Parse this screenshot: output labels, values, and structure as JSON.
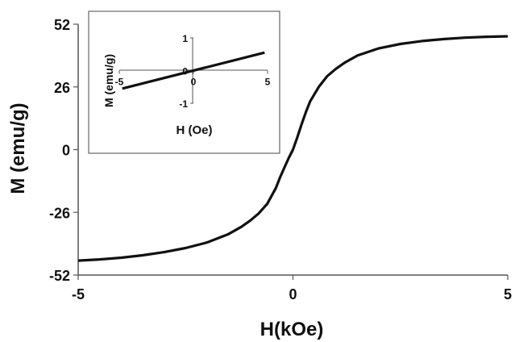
{
  "chart_data": [
    {
      "type": "line",
      "xlabel": "H(kOe)",
      "ylabel": "M (emu/g)",
      "xlim": [
        -5,
        5
      ],
      "ylim": [
        -52,
        52
      ],
      "xticks": [
        "-5",
        "0",
        "5"
      ],
      "yticks": [
        "52",
        "26",
        "0",
        "-26",
        "-52"
      ],
      "grid": false,
      "legend": "none",
      "series": [
        {
          "color": "#111111",
          "x": [
            -5.0,
            -4.5,
            -4.0,
            -3.5,
            -3.0,
            -2.5,
            -2.0,
            -1.5,
            -1.2,
            -1.0,
            -0.8,
            -0.6,
            -0.4,
            -0.3,
            -0.2,
            -0.1,
            0.0,
            0.1,
            0.2,
            0.3,
            0.4,
            0.6,
            0.8,
            1.0,
            1.2,
            1.5,
            2.0,
            2.5,
            3.0,
            3.5,
            4.0,
            4.5,
            5.0
          ],
          "y": [
            -46.0,
            -45.5,
            -44.8,
            -43.8,
            -42.5,
            -40.8,
            -38.5,
            -35.0,
            -32.0,
            -29.5,
            -26.5,
            -22.5,
            -16.0,
            -11.5,
            -7.5,
            -3.5,
            0.0,
            5.0,
            10.5,
            15.5,
            20.0,
            26.0,
            30.5,
            33.5,
            36.0,
            39.0,
            42.0,
            43.8,
            45.0,
            45.8,
            46.4,
            46.8,
            47.0
          ]
        }
      ]
    },
    {
      "type": "line",
      "xlabel": "H (Oe)",
      "ylabel": "M (emu/g)",
      "xlim": [
        -5,
        5
      ],
      "ylim": [
        -1,
        1
      ],
      "xticks": [
        "-5",
        "0",
        "5"
      ],
      "yticks": [
        "1",
        "0",
        "-1"
      ],
      "grid": false,
      "legend": "none",
      "series": [
        {
          "color": "#111111",
          "x": [
            -4.8,
            4.8
          ],
          "y": [
            -0.55,
            0.55
          ]
        }
      ]
    }
  ]
}
